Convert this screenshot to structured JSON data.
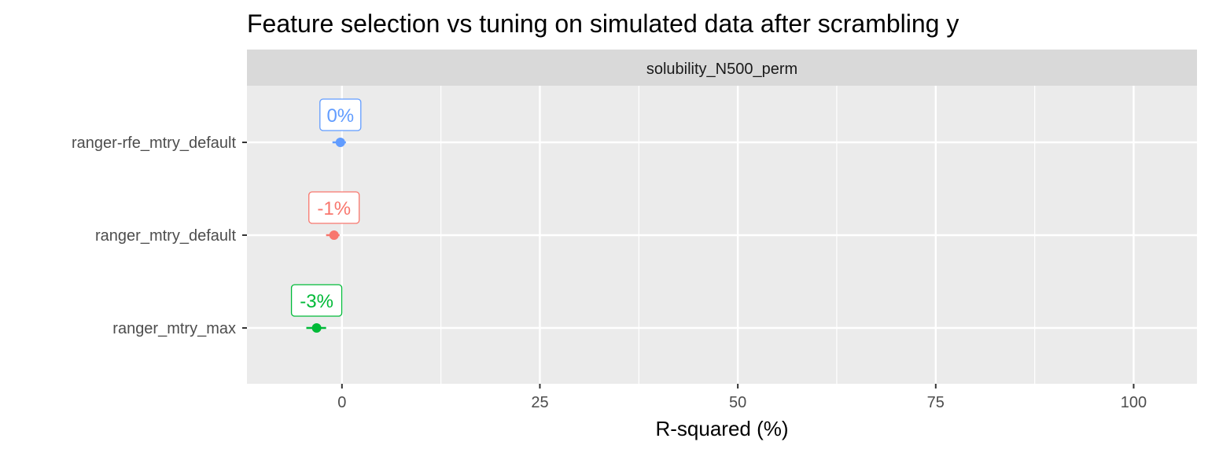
{
  "chart_data": {
    "type": "scatter",
    "title": "Feature selection vs tuning on simulated data after scrambling y",
    "facet": "solubility_N500_perm",
    "xlabel": "R-squared (%)",
    "ylabel": "",
    "xlim": [
      -12,
      108
    ],
    "x_ticks": [
      0,
      25,
      50,
      75,
      100
    ],
    "x_tick_labels": [
      "0",
      "25",
      "50",
      "75",
      "100"
    ],
    "categories": [
      "ranger-rfe_mtry_default",
      "ranger_mtry_default",
      "ranger_mtry_max"
    ],
    "series": [
      {
        "category": "ranger-rfe_mtry_default",
        "x": -0.2,
        "lo": -1.2,
        "hi": 0.5,
        "label": "0%",
        "color": "#619CFF"
      },
      {
        "category": "ranger_mtry_default",
        "x": -1.0,
        "lo": -2.0,
        "hi": -0.3,
        "label": "-1%",
        "color": "#F8766D"
      },
      {
        "category": "ranger_mtry_max",
        "x": -3.2,
        "lo": -4.5,
        "hi": -2.0,
        "label": "-3%",
        "color": "#00BA38"
      }
    ],
    "grid": true,
    "panel_background": "#EBEBEB",
    "strip_background": "#D9D9D9",
    "legend": "none"
  }
}
